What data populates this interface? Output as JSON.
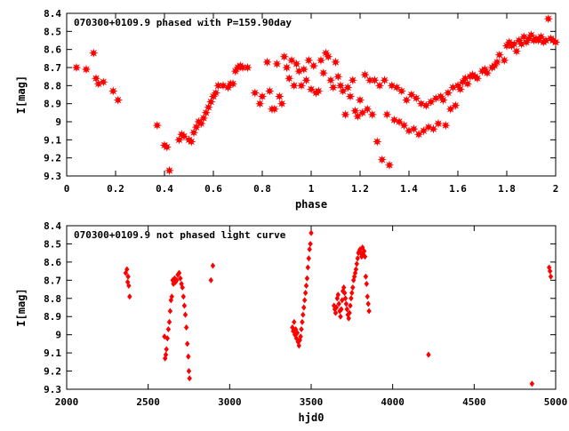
{
  "chart_data": [
    {
      "type": "scatter",
      "title": "070300+0109.9 phased with P=159.90day",
      "xlabel": "phase",
      "ylabel": "I[mag]",
      "xlim": [
        0,
        2
      ],
      "ylim": [
        8.4,
        9.3
      ],
      "y_inverted": true,
      "x_ticks": [
        "0",
        "0.2",
        "0.4",
        "0.6",
        "0.8",
        "1",
        "1.2",
        "1.4",
        "1.6",
        "1.8",
        "2"
      ],
      "y_ticks": [
        "8.4",
        "8.5",
        "8.6",
        "8.7",
        "8.8",
        "8.9",
        "9",
        "9.1",
        "9.2",
        "9.3"
      ],
      "marker": "star",
      "color": "#ff0000",
      "series": [
        {
          "points": [
            [
              0.04,
              8.7
            ],
            [
              0.08,
              8.71
            ],
            [
              0.11,
              8.62
            ],
            [
              0.12,
              8.76
            ],
            [
              0.13,
              8.79
            ],
            [
              0.15,
              8.78
            ],
            [
              0.19,
              8.83
            ],
            [
              0.21,
              8.88
            ],
            [
              0.37,
              9.02
            ],
            [
              0.4,
              9.13
            ],
            [
              0.41,
              9.14
            ],
            [
              0.42,
              9.27
            ],
            [
              0.46,
              9.1
            ],
            [
              0.47,
              9.07
            ],
            [
              0.48,
              9.08
            ],
            [
              0.5,
              9.1
            ],
            [
              0.51,
              9.11
            ],
            [
              0.52,
              9.06
            ],
            [
              0.53,
              9.03
            ],
            [
              0.54,
              9.0
            ],
            [
              0.55,
              9.01
            ],
            [
              0.56,
              8.98
            ],
            [
              0.57,
              8.95
            ],
            [
              0.58,
              8.92
            ],
            [
              0.59,
              8.89
            ],
            [
              0.6,
              8.86
            ],
            [
              0.61,
              8.84
            ],
            [
              0.62,
              8.8
            ],
            [
              0.64,
              8.8
            ],
            [
              0.66,
              8.81
            ],
            [
              0.67,
              8.79
            ],
            [
              0.68,
              8.79
            ],
            [
              0.69,
              8.72
            ],
            [
              0.7,
              8.7
            ],
            [
              0.71,
              8.69
            ],
            [
              0.72,
              8.7
            ],
            [
              0.74,
              8.7
            ],
            [
              0.77,
              8.84
            ],
            [
              0.79,
              8.9
            ],
            [
              0.8,
              8.86
            ],
            [
              0.82,
              8.67
            ],
            [
              0.83,
              8.83
            ],
            [
              0.84,
              8.93
            ],
            [
              0.85,
              8.93
            ],
            [
              0.86,
              8.68
            ],
            [
              0.87,
              8.86
            ],
            [
              0.88,
              8.9
            ],
            [
              0.89,
              8.64
            ],
            [
              0.9,
              8.7
            ],
            [
              0.91,
              8.76
            ],
            [
              0.92,
              8.66
            ],
            [
              0.93,
              8.8
            ],
            [
              0.94,
              8.68
            ],
            [
              0.95,
              8.72
            ],
            [
              0.96,
              8.8
            ],
            [
              0.97,
              8.71
            ],
            [
              0.98,
              8.77
            ],
            [
              0.99,
              8.66
            ],
            [
              1.0,
              8.82
            ],
            [
              1.01,
              8.69
            ],
            [
              1.02,
              8.84
            ],
            [
              1.03,
              8.83
            ],
            [
              1.04,
              8.66
            ],
            [
              1.05,
              8.73
            ],
            [
              1.06,
              8.62
            ],
            [
              1.07,
              8.64
            ],
            [
              1.08,
              8.77
            ],
            [
              1.09,
              8.81
            ],
            [
              1.1,
              8.67
            ],
            [
              1.11,
              8.75
            ],
            [
              1.12,
              8.8
            ],
            [
              1.13,
              8.83
            ],
            [
              1.14,
              8.96
            ],
            [
              1.15,
              8.81
            ],
            [
              1.16,
              8.86
            ],
            [
              1.17,
              8.77
            ],
            [
              1.18,
              8.94
            ],
            [
              1.19,
              8.97
            ],
            [
              1.2,
              8.88
            ],
            [
              1.21,
              8.95
            ],
            [
              1.22,
              8.74
            ],
            [
              1.23,
              8.93
            ],
            [
              1.24,
              8.77
            ],
            [
              1.25,
              8.96
            ],
            [
              1.26,
              8.77
            ],
            [
              1.27,
              9.11
            ],
            [
              1.28,
              8.8
            ],
            [
              1.29,
              9.21
            ],
            [
              1.3,
              8.77
            ],
            [
              1.31,
              8.96
            ],
            [
              1.32,
              9.24
            ],
            [
              1.33,
              8.8
            ],
            [
              1.34,
              8.99
            ],
            [
              1.35,
              8.81
            ],
            [
              1.36,
              9.0
            ],
            [
              1.37,
              8.83
            ],
            [
              1.38,
              9.02
            ],
            [
              1.39,
              8.88
            ],
            [
              1.4,
              9.05
            ],
            [
              1.41,
              8.85
            ],
            [
              1.42,
              9.04
            ],
            [
              1.43,
              8.87
            ],
            [
              1.44,
              9.07
            ],
            [
              1.45,
              8.9
            ],
            [
              1.46,
              9.05
            ],
            [
              1.47,
              8.91
            ],
            [
              1.48,
              9.03
            ],
            [
              1.49,
              8.89
            ],
            [
              1.5,
              9.04
            ],
            [
              1.51,
              8.87
            ],
            [
              1.52,
              9.01
            ],
            [
              1.53,
              8.86
            ],
            [
              1.54,
              8.88
            ],
            [
              1.55,
              9.02
            ],
            [
              1.56,
              8.84
            ],
            [
              1.57,
              8.93
            ],
            [
              1.58,
              8.81
            ],
            [
              1.59,
              8.91
            ],
            [
              1.6,
              8.8
            ],
            [
              1.61,
              8.82
            ],
            [
              1.62,
              8.78
            ],
            [
              1.63,
              8.76
            ],
            [
              1.64,
              8.79
            ],
            [
              1.65,
              8.75
            ],
            [
              1.66,
              8.74
            ],
            [
              1.67,
              8.75
            ],
            [
              1.68,
              8.76
            ],
            [
              1.7,
              8.72
            ],
            [
              1.71,
              8.71
            ],
            [
              1.72,
              8.73
            ],
            [
              1.74,
              8.7
            ],
            [
              1.75,
              8.69
            ],
            [
              1.76,
              8.67
            ],
            [
              1.77,
              8.63
            ],
            [
              1.79,
              8.66
            ],
            [
              1.8,
              8.58
            ],
            [
              1.81,
              8.56
            ],
            [
              1.82,
              8.58
            ],
            [
              1.83,
              8.57
            ],
            [
              1.84,
              8.61
            ],
            [
              1.85,
              8.55
            ],
            [
              1.86,
              8.57
            ],
            [
              1.87,
              8.53
            ],
            [
              1.88,
              8.56
            ],
            [
              1.89,
              8.54
            ],
            [
              1.9,
              8.52
            ],
            [
              1.91,
              8.55
            ],
            [
              1.92,
              8.54
            ],
            [
              1.93,
              8.55
            ],
            [
              1.94,
              8.53
            ],
            [
              1.95,
              8.56
            ],
            [
              1.96,
              8.55
            ],
            [
              1.97,
              8.43
            ],
            [
              1.98,
              8.54
            ],
            [
              1.99,
              8.55
            ],
            [
              2.0,
              8.56
            ]
          ]
        }
      ]
    },
    {
      "type": "scatter",
      "title": "070300+0109.9 not phased light curve",
      "xlabel": "hjd0",
      "ylabel": "I[mag]",
      "xlim": [
        2000,
        5000
      ],
      "ylim": [
        8.4,
        9.3
      ],
      "y_inverted": true,
      "x_ticks": [
        "2000",
        "2500",
        "3000",
        "3500",
        "4000",
        "4500",
        "5000"
      ],
      "y_ticks": [
        "8.4",
        "8.5",
        "8.6",
        "8.7",
        "8.8",
        "8.9",
        "9",
        "9.1",
        "9.2",
        "9.3"
      ],
      "marker": "diamond",
      "color": "#ff0000",
      "series": [
        {
          "points": [
            [
              2362,
              8.66
            ],
            [
              2370,
              8.64
            ],
            [
              2374,
              8.71
            ],
            [
              2377,
              8.68
            ],
            [
              2381,
              8.73
            ],
            [
              2386,
              8.79
            ],
            [
              2600,
              9.01
            ],
            [
              2604,
              9.13
            ],
            [
              2608,
              9.11
            ],
            [
              2612,
              9.08
            ],
            [
              2618,
              9.02
            ],
            [
              2624,
              8.97
            ],
            [
              2630,
              8.93
            ],
            [
              2635,
              8.87
            ],
            [
              2640,
              8.81
            ],
            [
              2645,
              8.79
            ],
            [
              2650,
              8.7
            ],
            [
              2655,
              8.72
            ],
            [
              2662,
              8.69
            ],
            [
              2668,
              8.71
            ],
            [
              2675,
              8.7
            ],
            [
              2682,
              8.67
            ],
            [
              2690,
              8.66
            ],
            [
              2697,
              8.69
            ],
            [
              2704,
              8.72
            ],
            [
              2710,
              8.74
            ],
            [
              2716,
              8.79
            ],
            [
              2722,
              8.84
            ],
            [
              2728,
              8.89
            ],
            [
              2734,
              8.96
            ],
            [
              2740,
              9.05
            ],
            [
              2746,
              9.12
            ],
            [
              2750,
              9.2
            ],
            [
              2754,
              9.24
            ],
            [
              2885,
              8.7
            ],
            [
              2897,
              8.62
            ],
            [
              3385,
              8.96
            ],
            [
              3390,
              8.98
            ],
            [
              3395,
              8.93
            ],
            [
              3400,
              9.0
            ],
            [
              3405,
              8.97
            ],
            [
              3410,
              9.02
            ],
            [
              3415,
              8.99
            ],
            [
              3420,
              9.04
            ],
            [
              3425,
              9.06
            ],
            [
              3430,
              9.03
            ],
            [
              3435,
              9.01
            ],
            [
              3440,
              8.97
            ],
            [
              3445,
              8.93
            ],
            [
              3450,
              8.89
            ],
            [
              3455,
              8.85
            ],
            [
              3460,
              8.81
            ],
            [
              3465,
              8.77
            ],
            [
              3470,
              8.73
            ],
            [
              3475,
              8.69
            ],
            [
              3480,
              8.63
            ],
            [
              3485,
              8.58
            ],
            [
              3490,
              8.53
            ],
            [
              3495,
              8.5
            ],
            [
              3500,
              8.44
            ],
            [
              3640,
              8.84
            ],
            [
              3645,
              8.86
            ],
            [
              3650,
              8.88
            ],
            [
              3655,
              8.85
            ],
            [
              3660,
              8.8
            ],
            [
              3665,
              8.78
            ],
            [
              3670,
              8.83
            ],
            [
              3675,
              8.87
            ],
            [
              3680,
              8.9
            ],
            [
              3685,
              8.86
            ],
            [
              3690,
              8.81
            ],
            [
              3695,
              8.76
            ],
            [
              3700,
              8.74
            ],
            [
              3705,
              8.77
            ],
            [
              3710,
              8.8
            ],
            [
              3715,
              8.83
            ],
            [
              3720,
              8.86
            ],
            [
              3725,
              8.89
            ],
            [
              3730,
              8.91
            ],
            [
              3735,
              8.88
            ],
            [
              3740,
              8.84
            ],
            [
              3745,
              8.8
            ],
            [
              3750,
              8.77
            ],
            [
              3755,
              8.74
            ],
            [
              3760,
              8.7
            ],
            [
              3765,
              8.68
            ],
            [
              3770,
              8.66
            ],
            [
              3775,
              8.64
            ],
            [
              3780,
              8.61
            ],
            [
              3785,
              8.58
            ],
            [
              3790,
              8.55
            ],
            [
              3795,
              8.54
            ],
            [
              3800,
              8.53
            ],
            [
              3805,
              8.55
            ],
            [
              3810,
              8.57
            ],
            [
              3815,
              8.52
            ],
            [
              3820,
              8.56
            ],
            [
              3825,
              8.54
            ],
            [
              3830,
              8.57
            ],
            [
              3835,
              8.68
            ],
            [
              3840,
              8.72
            ],
            [
              3845,
              8.79
            ],
            [
              3850,
              8.83
            ],
            [
              3855,
              8.87
            ],
            [
              4220,
              9.11
            ],
            [
              4855,
              9.27
            ],
            [
              4960,
              8.63
            ],
            [
              4965,
              8.65
            ],
            [
              4970,
              8.68
            ]
          ]
        }
      ]
    }
  ]
}
